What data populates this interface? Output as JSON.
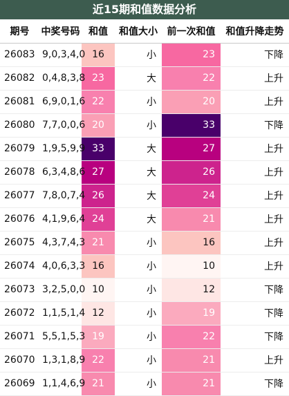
{
  "title": "近15期和值数据分析",
  "headers": [
    "期号",
    "中奖号码",
    "和值",
    "和值大小",
    "前一次和值",
    "和值升降走势"
  ],
  "rows": [
    {
      "issue": "26083",
      "numbers": "9,0,3,4,0",
      "sum": "16",
      "size": "小",
      "prev": "23",
      "trend": "下降",
      "sum_bg": "#fcc5c0",
      "prev_bg": "#f768a1"
    },
    {
      "issue": "26082",
      "numbers": "0,4,8,3,8",
      "sum": "23",
      "size": "大",
      "prev": "22",
      "trend": "上升",
      "sum_bg": "#f768a1",
      "prev_bg": "#f880ae"
    },
    {
      "issue": "26081",
      "numbers": "6,9,0,1,6",
      "sum": "22",
      "size": "小",
      "prev": "20",
      "trend": "上升",
      "sum_bg": "#f880ae",
      "prev_bg": "#fa9fb5"
    },
    {
      "issue": "26080",
      "numbers": "7,7,0,0,6",
      "sum": "20",
      "size": "小",
      "prev": "33",
      "trend": "下降",
      "sum_bg": "#fa9fb5",
      "prev_bg": "#49006a"
    },
    {
      "issue": "26079",
      "numbers": "1,9,5,9,9",
      "sum": "33",
      "size": "大",
      "prev": "27",
      "trend": "上升",
      "sum_bg": "#49006a",
      "prev_bg": "#b8017f"
    },
    {
      "issue": "26078",
      "numbers": "6,3,4,8,6",
      "sum": "27",
      "size": "大",
      "prev": "26",
      "trend": "上升",
      "sum_bg": "#b8017f",
      "prev_bg": "#cd238d"
    },
    {
      "issue": "26077",
      "numbers": "7,8,0,7,4",
      "sum": "26",
      "size": "大",
      "prev": "24",
      "trend": "上升",
      "sum_bg": "#cd238d",
      "prev_bg": "#e04096"
    },
    {
      "issue": "26076",
      "numbers": "4,1,9,6,4",
      "sum": "24",
      "size": "大",
      "prev": "21",
      "trend": "上升",
      "sum_bg": "#e04096",
      "prev_bg": "#f88aae"
    },
    {
      "issue": "26075",
      "numbers": "4,3,7,4,3",
      "sum": "21",
      "size": "小",
      "prev": "16",
      "trend": "上升",
      "sum_bg": "#f88aae",
      "prev_bg": "#fcc5c0"
    },
    {
      "issue": "26074",
      "numbers": "4,0,6,3,3",
      "sum": "16",
      "size": "小",
      "prev": "10",
      "trend": "上升",
      "sum_bg": "#fcc5c0",
      "prev_bg": "#fff5f3"
    },
    {
      "issue": "26073",
      "numbers": "3,2,5,0,0",
      "sum": "10",
      "size": "小",
      "prev": "12",
      "trend": "下降",
      "sum_bg": "#fff5f3",
      "prev_bg": "#fee6e4"
    },
    {
      "issue": "26072",
      "numbers": "1,1,5,1,4",
      "sum": "12",
      "size": "小",
      "prev": "19",
      "trend": "下降",
      "sum_bg": "#fee6e4",
      "prev_bg": "#fbaabe"
    },
    {
      "issue": "26071",
      "numbers": "5,5,1,5,3",
      "sum": "19",
      "size": "小",
      "prev": "22",
      "trend": "下降",
      "sum_bg": "#fbaabe",
      "prev_bg": "#f880ae"
    },
    {
      "issue": "26070",
      "numbers": "1,3,1,8,9",
      "sum": "22",
      "size": "小",
      "prev": "21",
      "trend": "上升",
      "sum_bg": "#f880ae",
      "prev_bg": "#f88aae"
    },
    {
      "issue": "26069",
      "numbers": "1,1,4,6,9",
      "sum": "21",
      "size": "小",
      "prev": "21",
      "trend": "下降",
      "sum_bg": "#f88aae",
      "prev_bg": "#f88aae"
    }
  ]
}
